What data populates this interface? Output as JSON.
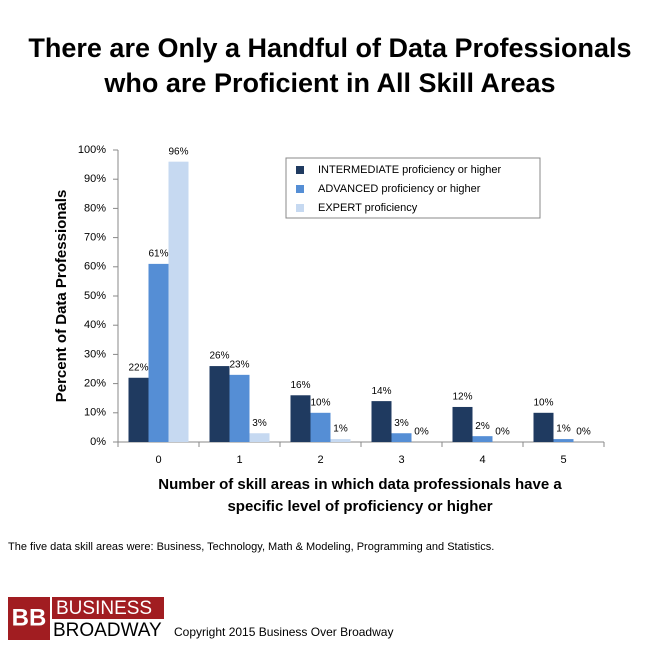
{
  "chart_data": {
    "type": "bar",
    "title": [
      "There are Only a Handful of Data Professionals",
      "who are Proficient in All Skill Areas"
    ],
    "xlabel": [
      "Number of skill areas in which data professionals have a",
      "specific level of proficiency or higher"
    ],
    "ylabel": "Percent of Data Professionals",
    "categories": [
      "0",
      "1",
      "2",
      "3",
      "4",
      "5"
    ],
    "series": [
      {
        "name": "INTERMEDIATE  proficiency or higher",
        "color": "#1f3a60",
        "values": [
          22,
          26,
          16,
          14,
          12,
          10
        ],
        "value_labels": [
          "22%",
          "26%",
          "16%",
          "14%",
          "12%",
          "10%"
        ]
      },
      {
        "name": "ADVANCED proficiency or higher",
        "color": "#558ed5",
        "values": [
          61,
          23,
          10,
          3,
          2,
          1
        ],
        "value_labels": [
          "61%",
          "23%",
          "10%",
          "3%",
          "2%",
          "1%"
        ]
      },
      {
        "name": "EXPERT proficiency",
        "color": "#c6d9f1",
        "values": [
          96,
          3,
          1,
          0,
          0,
          0
        ],
        "value_labels": [
          "96%",
          "3%",
          "1%",
          "0%",
          "0%",
          "0%"
        ]
      }
    ],
    "ylim": [
      0,
      100
    ],
    "yticks": [
      {
        "value": 0,
        "label": "0%"
      },
      {
        "value": 10,
        "label": "10%"
      },
      {
        "value": 20,
        "label": "20%"
      },
      {
        "value": 30,
        "label": "30%"
      },
      {
        "value": 40,
        "label": "40%"
      },
      {
        "value": 50,
        "label": "50%"
      },
      {
        "value": 60,
        "label": "60%"
      },
      {
        "value": 70,
        "label": "70%"
      },
      {
        "value": 80,
        "label": "80%"
      },
      {
        "value": 90,
        "label": "90%"
      },
      {
        "value": 100,
        "label": "100%"
      }
    ],
    "legend": "top-right",
    "footnote": "The five data skill areas were: Business, Technology, Math & Modeling, Programming and Statistics."
  },
  "footer": {
    "logo_mark": "BB",
    "logo_top": "BUSINESS",
    "logo_bottom": "BROADWAY",
    "copyright": "Copyright 2015 Business Over Broadway"
  }
}
